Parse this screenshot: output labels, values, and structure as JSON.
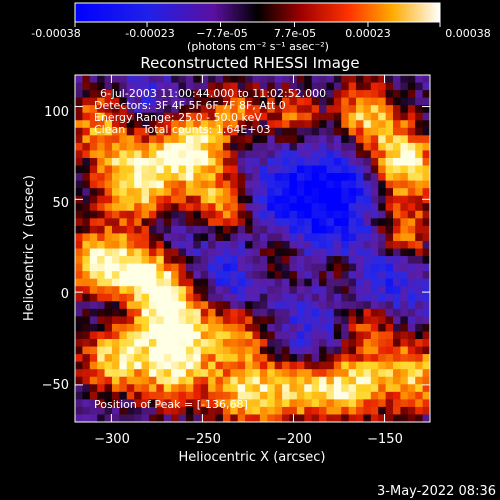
{
  "chart_data": {
    "type": "heatmap",
    "title": "Reconstructed RHESSI Image",
    "xlabel": "Heliocentric X (arcsec)",
    "ylabel": "Heliocentric Y (arcsec)",
    "xlim": [
      -320,
      -125
    ],
    "ylim": [
      -70,
      117
    ],
    "x_ticks": [
      -300,
      -250,
      -200,
      -150
    ],
    "y_ticks": [
      -50,
      0,
      50,
      100
    ],
    "x_tick_labels": [
      "−300",
      "−250",
      "−200",
      "−150"
    ],
    "y_tick_labels": [
      "−50",
      "0",
      "50",
      "100"
    ],
    "colorbar": {
      "range": [
        -0.00038,
        0.00038
      ],
      "ticks": [
        -0.00038,
        -0.00023,
        -7.7e-05,
        7.7e-05,
        0.00023,
        0.00038
      ],
      "tick_labels": [
        "-0.00038",
        "-0.00023",
        "−7.7e-05",
        "7.7e-05",
        "0.00023",
        "0.00038"
      ],
      "unit_label": "(photons cm⁻² s⁻¹ asec⁻²)"
    },
    "annotations": [
      "6-Jul-2003 11:00:44.000 to 11:02:52.000",
      "Detectors: 3F 4F 5F 6F 7F 8F, Att 0",
      "Energy Range: 25.0 - 50.0 keV",
      "Clean     Total counts: 1.64E+03",
      "Position of Peak = [-136,68]"
    ],
    "peak_position": [
      -136,
      68
    ],
    "footer": "3-May-2022 08:36",
    "grid_cols": 48,
    "grid_rows": 46,
    "hotspots": [
      {
        "x": -285,
        "y": 60,
        "s": 0.95,
        "r": 16
      },
      {
        "x": -305,
        "y": 92,
        "s": 0.75,
        "r": 14
      },
      {
        "x": -255,
        "y": 78,
        "s": 0.9,
        "r": 15
      },
      {
        "x": -240,
        "y": 45,
        "s": 0.85,
        "r": 14
      },
      {
        "x": -305,
        "y": 15,
        "s": 1.0,
        "r": 14
      },
      {
        "x": -280,
        "y": 10,
        "s": 0.7,
        "r": 11
      },
      {
        "x": -265,
        "y": -10,
        "s": 1.0,
        "r": 15
      },
      {
        "x": -300,
        "y": -35,
        "s": 0.8,
        "r": 14
      },
      {
        "x": -265,
        "y": -40,
        "s": 0.85,
        "r": 15
      },
      {
        "x": -230,
        "y": -20,
        "s": 0.7,
        "r": 13
      },
      {
        "x": -210,
        "y": 20,
        "s": 0.75,
        "r": 13
      },
      {
        "x": -225,
        "y": -55,
        "s": 0.8,
        "r": 14
      },
      {
        "x": -195,
        "y": -50,
        "s": 0.75,
        "r": 14
      },
      {
        "x": -170,
        "y": -50,
        "s": 0.85,
        "r": 13
      },
      {
        "x": -135,
        "y": -45,
        "s": 0.85,
        "r": 14
      },
      {
        "x": -140,
        "y": 68,
        "s": 1.0,
        "r": 15
      },
      {
        "x": -160,
        "y": 95,
        "s": 0.8,
        "r": 13
      },
      {
        "x": -140,
        "y": 30,
        "s": 0.7,
        "r": 12
      },
      {
        "x": -175,
        "y": 10,
        "s": 0.55,
        "r": 10
      },
      {
        "x": -160,
        "y": -15,
        "s": 0.75,
        "r": 12
      },
      {
        "x": -200,
        "y": 95,
        "s": 0.55,
        "r": 11
      },
      {
        "x": -230,
        "y": 100,
        "s": 0.5,
        "r": 10
      }
    ],
    "coldspots": [
      {
        "x": -205,
        "y": 40,
        "s": 0.9,
        "r": 22
      },
      {
        "x": -170,
        "y": 60,
        "s": 0.75,
        "r": 18
      },
      {
        "x": -155,
        "y": 5,
        "s": 0.85,
        "r": 18
      },
      {
        "x": -235,
        "y": 5,
        "s": 0.7,
        "r": 18
      },
      {
        "x": -285,
        "y": 100,
        "s": 0.55,
        "r": 14
      },
      {
        "x": -260,
        "y": 40,
        "s": 0.45,
        "r": 12
      },
      {
        "x": -190,
        "y": -30,
        "s": 0.6,
        "r": 16
      },
      {
        "x": -305,
        "y": -10,
        "s": 0.4,
        "r": 10
      }
    ]
  }
}
